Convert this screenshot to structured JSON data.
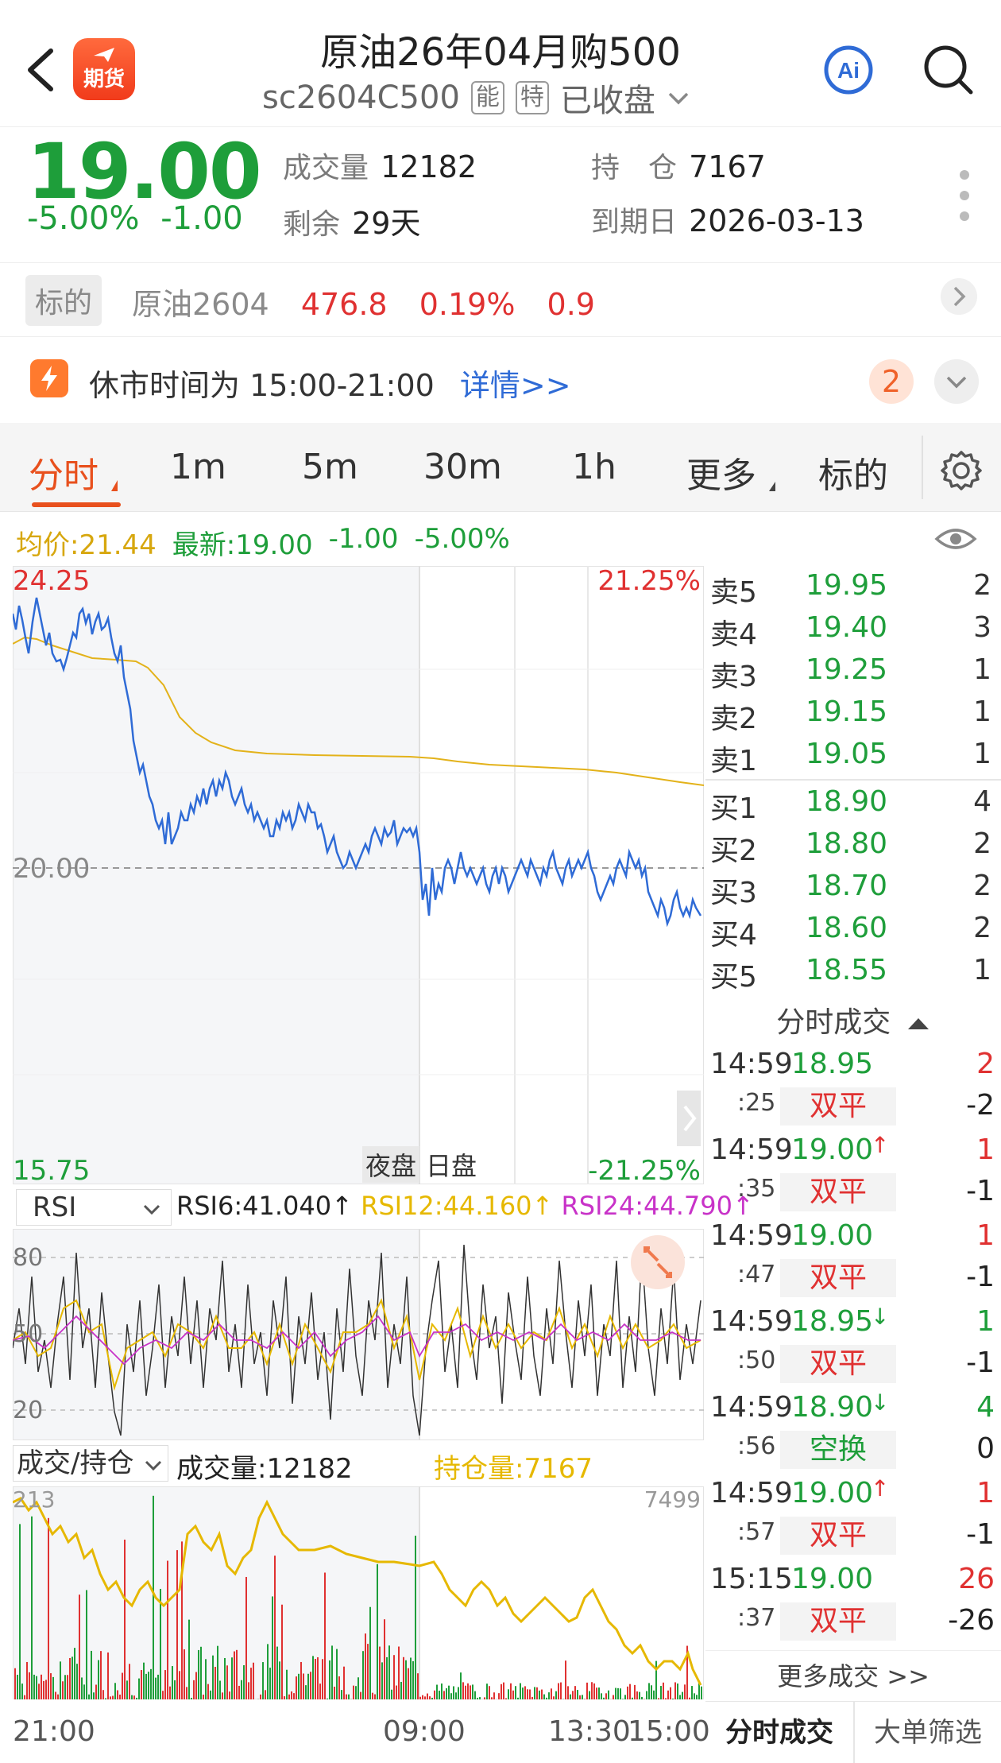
{
  "header": {
    "title": "原油26年04月购500",
    "code": "sc2604C500",
    "tag1": "能",
    "tag2": "特",
    "status": "已收盘",
    "logo_text": "期货"
  },
  "quote": {
    "price": "19.00",
    "change_pct": "-5.00%",
    "change": "-1.00",
    "volume_label": "成交量",
    "volume": "12182",
    "oi_label": "持　仓",
    "oi": "7167",
    "remaining_label": "剩余",
    "remaining": "29天",
    "expiry_label": "到期日",
    "expiry": "2026-03-13"
  },
  "underlying": {
    "tag": "标的",
    "name": "原油2604",
    "price": "476.8",
    "pct": "0.19%",
    "change": "0.9"
  },
  "notice": {
    "text": "休市时间为 15:00-21:00",
    "link": "详情>>",
    "badge": "2"
  },
  "tabs": [
    "分时",
    "1m",
    "5m",
    "30m",
    "1h",
    "更多",
    "标的"
  ],
  "indicators": {
    "avg": "均价:21.44",
    "latest": "最新:19.00",
    "chg": "-1.00",
    "pct": "-5.00%"
  },
  "main_chart": {
    "y_high": "24.25",
    "y_mid": "20.00",
    "y_low": "15.75",
    "pct_high": "21.25%",
    "pct_low": "-21.25%",
    "session_night": "夜盘",
    "session_day": "日盘"
  },
  "rsi": {
    "selector": "RSI",
    "rsi6": "RSI6:41.040↑",
    "rsi12": "RSI12:44.160↑",
    "rsi24": "RSI24:44.790↑",
    "levels": [
      "80",
      "50",
      "20"
    ]
  },
  "volume_panel": {
    "selector": "成交/持仓",
    "volume": "成交量:12182",
    "oi": "持仓量:7167",
    "left_max": "213",
    "right_max": "7499"
  },
  "time_axis": [
    "21:00",
    "09:00",
    "13:30",
    "15:00"
  ],
  "orderbook": {
    "asks": [
      {
        "label": "卖5",
        "price": "19.95",
        "vol": "2"
      },
      {
        "label": "卖4",
        "price": "19.40",
        "vol": "3"
      },
      {
        "label": "卖3",
        "price": "19.25",
        "vol": "1"
      },
      {
        "label": "卖2",
        "price": "19.15",
        "vol": "1"
      },
      {
        "label": "卖1",
        "price": "19.05",
        "vol": "1"
      }
    ],
    "bids": [
      {
        "label": "买1",
        "price": "18.90",
        "vol": "4"
      },
      {
        "label": "买2",
        "price": "18.80",
        "vol": "2"
      },
      {
        "label": "买3",
        "price": "18.70",
        "vol": "2"
      },
      {
        "label": "买4",
        "price": "18.60",
        "vol": "2"
      },
      {
        "label": "买5",
        "price": "18.55",
        "vol": "1"
      }
    ]
  },
  "ticks": {
    "title": "分时成交",
    "rows": [
      {
        "time": "14:59",
        "sec": ":25",
        "price": "18.95",
        "dir": "",
        "vol": "2",
        "type": "双平",
        "delta": "-2"
      },
      {
        "time": "14:59",
        "sec": ":35",
        "price": "19.00",
        "dir": "↑",
        "vol": "1",
        "type": "双平",
        "delta": "-1"
      },
      {
        "time": "14:59",
        "sec": ":47",
        "price": "19.00",
        "dir": "",
        "vol": "1",
        "type": "双平",
        "delta": "-1"
      },
      {
        "time": "14:59",
        "sec": ":50",
        "price": "18.95",
        "dir": "↓",
        "vol": "1",
        "type": "双平",
        "delta": "-1"
      },
      {
        "time": "14:59",
        "sec": ":56",
        "price": "18.90",
        "dir": "↓",
        "vol": "4",
        "type": "空换",
        "delta": "0"
      },
      {
        "time": "14:59",
        "sec": ":57",
        "price": "19.00",
        "dir": "↑",
        "vol": "1",
        "type": "双平",
        "delta": "-1"
      },
      {
        "time": "15:15",
        "sec": ":37",
        "price": "19.00",
        "dir": "",
        "vol": "26",
        "type": "双平",
        "delta": "-26"
      }
    ],
    "more": "更多成交 >>"
  },
  "bottom_tabs": [
    "分时成交",
    "大单筛选"
  ],
  "colors": {
    "accent": "#e8501d",
    "up": "#e03131",
    "down": "#1e9e3a",
    "price_line": "#2f6bd6",
    "avg_line": "#e3b21a"
  }
}
